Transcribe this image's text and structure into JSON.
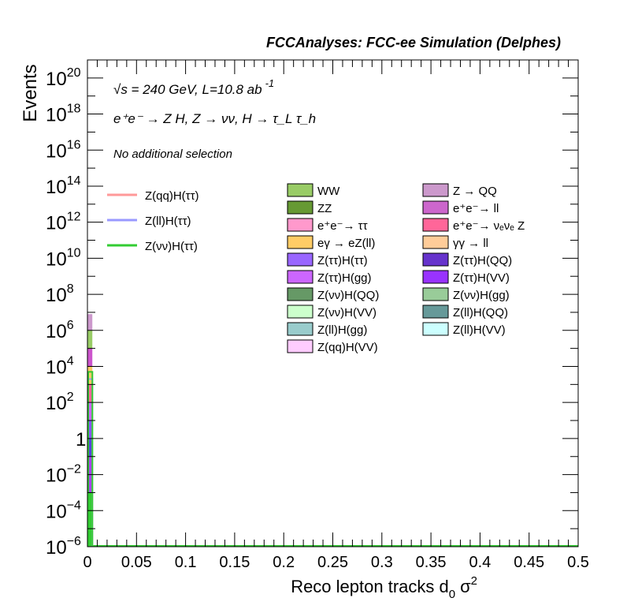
{
  "chart_data": {
    "type": "bar",
    "title": "FCCAnalyses: FCC-ee Simulation (Delphes)",
    "xlabel": "Reco lepton tracks d",
    "xlabel_sub": "0",
    "xlabel_suffix": "σ",
    "xlabel_sup": "2",
    "ylabel": "Events",
    "y_scale": "log",
    "xlim": [
      0,
      0.5
    ],
    "ylim": [
      1e-06,
      1e+21
    ],
    "x_ticks": [
      "0",
      "0.05",
      "0.1",
      "0.15",
      "0.2",
      "0.25",
      "0.3",
      "0.35",
      "0.4",
      "0.45",
      "0.5"
    ],
    "y_ticks": [
      {
        "value": 1e+20,
        "base": "10",
        "exp": "20"
      },
      {
        "value": 1e+18,
        "base": "10",
        "exp": "18"
      },
      {
        "value": 1e+16,
        "base": "10",
        "exp": "16"
      },
      {
        "value": 100000000000000.0,
        "base": "10",
        "exp": "14"
      },
      {
        "value": 1000000000000.0,
        "base": "10",
        "exp": "12"
      },
      {
        "value": 10000000000.0,
        "base": "10",
        "exp": "10"
      },
      {
        "value": 100000000.0,
        "base": "10",
        "exp": "8"
      },
      {
        "value": 1000000.0,
        "base": "10",
        "exp": "6"
      },
      {
        "value": 10000.0,
        "base": "10",
        "exp": "4"
      },
      {
        "value": 100.0,
        "base": "10",
        "exp": "2"
      },
      {
        "value": 1,
        "base": "1",
        "exp": ""
      },
      {
        "value": 0.01,
        "base": "10",
        "exp": "−2"
      },
      {
        "value": 0.0001,
        "base": "10",
        "exp": "−4"
      },
      {
        "value": 1e-06,
        "base": "10",
        "exp": "−6"
      }
    ],
    "annotations": {
      "energy_line": "√s = 240 GeV, L=10.8 ab",
      "energy_sup": "-1",
      "process_line": "e⁺e⁻ → Z H, Z → νν, H → τ_L τ_h",
      "selection": "No additional selection"
    },
    "first_bin": {
      "x_range": [
        0,
        0.005
      ]
    },
    "stack_bands": [
      {
        "lo": 1e-06,
        "hi": 0.001,
        "color": "#33cc33"
      },
      {
        "lo": 0.001,
        "hi": 0.1,
        "color": "#aa44ee"
      },
      {
        "lo": 0.1,
        "hi": 1.0,
        "color": "#5544dd"
      },
      {
        "lo": 1.0,
        "hi": 10.0,
        "color": "#8855ff"
      },
      {
        "lo": 10.0,
        "hi": 100.0,
        "color": "#cc66ff"
      },
      {
        "lo": 100.0,
        "hi": 1000.0,
        "color": "#ff6699"
      },
      {
        "lo": 1000.0,
        "hi": 10000.0,
        "color": "#ffcc66"
      },
      {
        "lo": 10000.0,
        "hi": 100000.0,
        "color": "#cc55cc"
      },
      {
        "lo": 100000.0,
        "hi": 1000000.0,
        "color": "#99cc66"
      },
      {
        "lo": 1000000.0,
        "hi": 8000000.0,
        "color": "#cc99cc"
      }
    ],
    "signal_lines": [
      {
        "name": "Z(qq)H(ττ)",
        "color": "#ff9999",
        "peak": 5000.0
      },
      {
        "name": "Z(ll)H(ττ)",
        "color": "#9999ff",
        "peak": 2000.0
      },
      {
        "name": "Z(νν)H(ττ)",
        "color": "#33cc33",
        "peak": 5000.0
      }
    ],
    "background_legend_col1": [
      {
        "name": "WW",
        "color": "#99cc66"
      },
      {
        "name": "ZZ",
        "color": "#669933"
      },
      {
        "name": "e⁺e⁻→ ττ",
        "color": "#ff99cc"
      },
      {
        "name": "eγ → eZ(ll)",
        "color": "#ffcc66"
      },
      {
        "name": "Z(ττ)H(ττ)",
        "color": "#9966ff"
      },
      {
        "name": "Z(ττ)H(gg)",
        "color": "#cc66ff"
      },
      {
        "name": "Z(νν)H(QQ)",
        "color": "#669966"
      },
      {
        "name": "Z(νν)H(VV)",
        "color": "#ccffcc"
      },
      {
        "name": "Z(ll)H(gg)",
        "color": "#99cccc"
      },
      {
        "name": "Z(qq)H(VV)",
        "color": "#ffccff"
      }
    ],
    "background_legend_col2": [
      {
        "name": "Z → QQ",
        "color": "#cc99cc"
      },
      {
        "name": "e⁺e⁻→ ll",
        "color": "#cc66cc"
      },
      {
        "name": "e⁺e⁻→ νₑνₑ Z",
        "color": "#ff6699"
      },
      {
        "name": "γγ → ll",
        "color": "#ffcc99"
      },
      {
        "name": "Z(ττ)H(QQ)",
        "color": "#6633cc"
      },
      {
        "name": "Z(ττ)H(VV)",
        "color": "#9933ff"
      },
      {
        "name": "Z(νν)H(gg)",
        "color": "#99cc99"
      },
      {
        "name": "Z(ll)H(QQ)",
        "color": "#669999"
      },
      {
        "name": "Z(ll)H(VV)",
        "color": "#ccffff"
      }
    ]
  }
}
